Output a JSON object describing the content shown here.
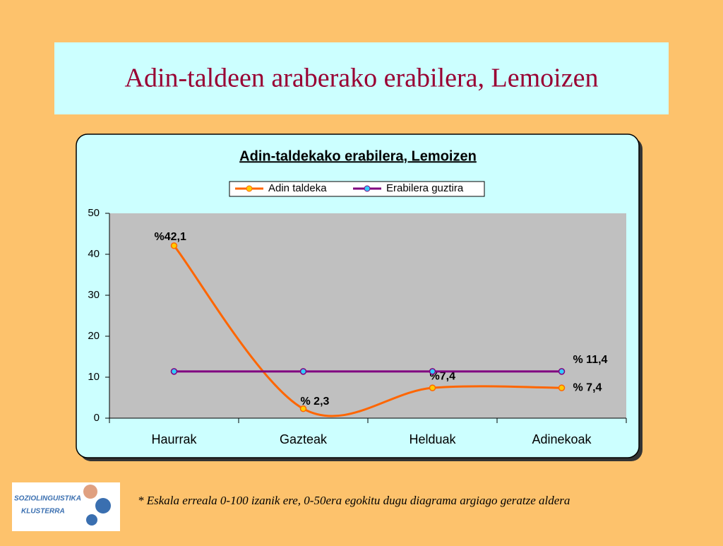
{
  "slide_title": "Adin-taldeen araberako erabilera, Lemoizen",
  "footnote": "* Eskala erreala 0-100 izanik ere, 0-50era egokitu dugu diagrama argiago geratze aldera",
  "logo": {
    "line1": "SOZIOLINGUISTIKA",
    "line2": "KLUSTERRA"
  },
  "chart_data": {
    "type": "line",
    "title": "Adin-taldekako erabilera, Lemoizen",
    "categories": [
      "Haurrak",
      "Gazteak",
      "Helduak",
      "Adinekoak"
    ],
    "series": [
      {
        "name": "Adin taldeka",
        "color": "#ff6600",
        "smooth": true,
        "values": [
          42.1,
          2.3,
          7.4,
          7.4
        ],
        "value_labels": [
          "%42,1",
          "% 2,3",
          "%7,4",
          "% 7,4"
        ]
      },
      {
        "name": "Erabilera guztira",
        "color": "#800080",
        "values": [
          11.4,
          11.4,
          11.4,
          11.4
        ],
        "value_labels": [
          null,
          null,
          null,
          "% 11,4"
        ]
      }
    ],
    "ylim": [
      0,
      50
    ],
    "yticks": [
      0,
      10,
      20,
      30,
      40,
      50
    ],
    "legend": "top",
    "grid": false
  }
}
